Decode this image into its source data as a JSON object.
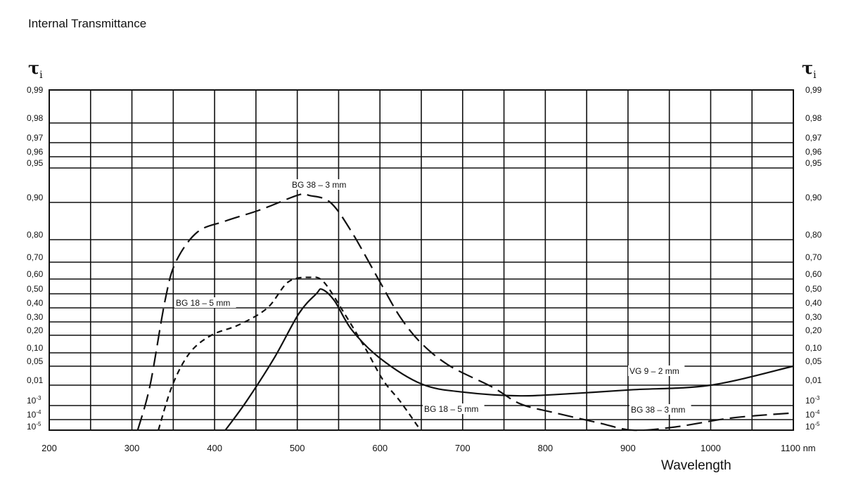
{
  "chart_data": {
    "type": "line",
    "title": "Internal Transmittance",
    "xlabel": "Wavelength",
    "ylabel": "τi",
    "ylabel_left": "τ",
    "ylabel_sub": "i",
    "xlim": [
      200,
      1100
    ],
    "x_unit": "nm",
    "x_ticks": [
      200,
      300,
      400,
      500,
      600,
      700,
      800,
      900,
      1000,
      1100
    ],
    "x_tick_labels": [
      "200",
      "300",
      "400",
      "500",
      "600",
      "700",
      "800",
      "900",
      "1000",
      "1100 nm"
    ],
    "x_grid_step": 50,
    "y_scale": "nonlinear (transmittance probability scale)",
    "y_ticks": [
      0.99,
      0.98,
      0.97,
      0.96,
      0.95,
      0.9,
      0.8,
      0.7,
      0.6,
      0.5,
      0.4,
      0.3,
      0.2,
      0.1,
      0.05,
      0.01,
      0.001,
      0.0001,
      1e-05
    ],
    "y_tick_labels": [
      "0,99",
      "0,98",
      "0,97",
      "0,96",
      "0,95",
      "0,90",
      "0,80",
      "0,70",
      "0,60",
      "0,50",
      "0,40",
      "0,30",
      "0,20",
      "0,10",
      "0,05",
      "0,01",
      "10-3",
      "10-4",
      "10-5"
    ],
    "grid": true,
    "series": [
      {
        "name": "BG 38 – 3 mm",
        "style": "long-dash",
        "color": "#111111",
        "points": [
          [
            307,
            1e-05
          ],
          [
            322,
            0.01
          ],
          [
            340,
            0.45
          ],
          [
            353,
            0.7
          ],
          [
            379,
            0.82
          ],
          [
            413,
            0.85
          ],
          [
            455,
            0.88
          ],
          [
            502,
            0.911
          ],
          [
            515,
            0.91
          ],
          [
            540,
            0.9
          ],
          [
            566,
            0.82
          ],
          [
            600,
            0.58
          ],
          [
            625,
            0.33
          ],
          [
            651,
            0.15
          ],
          [
            685,
            0.05
          ],
          [
            736,
            0.008
          ],
          [
            770,
            0.0012
          ],
          [
            812,
            0.0003
          ],
          [
            864,
            5e-05
          ],
          [
            906,
            1e-05
          ],
          [
            957,
            2e-05
          ],
          [
            1025,
            0.00013
          ],
          [
            1100,
            0.0003
          ]
        ]
      },
      {
        "name": "BG 18 – 5 mm",
        "style": "short-dash",
        "color": "#111111",
        "points": [
          [
            332,
            1e-05
          ],
          [
            349,
            0.01
          ],
          [
            370,
            0.1
          ],
          [
            396,
            0.2
          ],
          [
            430,
            0.28
          ],
          [
            464,
            0.4
          ],
          [
            489,
            0.58
          ],
          [
            515,
            0.61
          ],
          [
            532,
            0.58
          ],
          [
            557,
            0.36
          ],
          [
            583,
            0.12
          ],
          [
            604,
            0.02
          ],
          [
            625,
            0.0015
          ],
          [
            649,
            1e-05
          ]
        ]
      },
      {
        "name": "VG 9 – 2 mm",
        "style": "solid",
        "color": "#111111",
        "points": [
          [
            413,
            1e-05
          ],
          [
            438,
            0.0015
          ],
          [
            472,
            0.08
          ],
          [
            502,
            0.36
          ],
          [
            523,
            0.5
          ],
          [
            530,
            0.53
          ],
          [
            545,
            0.45
          ],
          [
            566,
            0.24
          ],
          [
            600,
            0.08
          ],
          [
            651,
            0.012
          ],
          [
            702,
            0.0045
          ],
          [
            770,
            0.003
          ],
          [
            838,
            0.004
          ],
          [
            906,
            0.006
          ],
          [
            1000,
            0.01
          ],
          [
            1100,
            0.05
          ]
        ]
      }
    ],
    "annotations": [
      "BG 38 – 3 mm",
      "BG 18 – 5 mm",
      "BG 18 – 5 mm",
      "VG 9 – 2 mm",
      "BG 38 – 3 mm"
    ],
    "legend": "none (inline curve labels)"
  }
}
